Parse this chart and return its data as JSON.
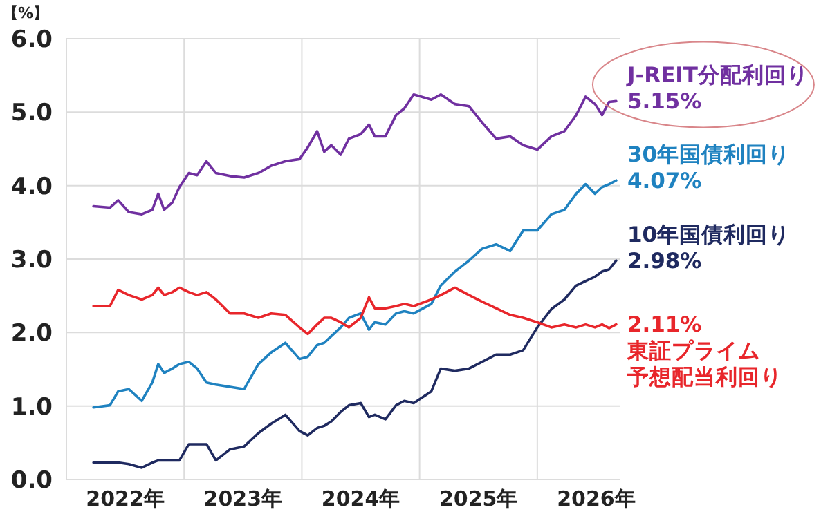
{
  "chart_data": {
    "type": "line",
    "ylabel": "【%】",
    "x": [
      2022.23,
      2022.37,
      2022.44,
      2022.53,
      2022.64,
      2022.73,
      2022.78,
      2022.83,
      2022.9,
      2022.96,
      2023.04,
      2023.11,
      2023.19,
      2023.27,
      2023.39,
      2023.51,
      2023.63,
      2023.74,
      2023.86,
      2023.98,
      2024.05,
      2024.13,
      2024.19,
      2024.25,
      2024.33,
      2024.4,
      2024.5,
      2024.57,
      2024.62,
      2024.71,
      2024.8,
      2024.87,
      2024.95,
      2025.1,
      2025.18,
      2025.3,
      2025.42,
      2025.53,
      2025.65,
      2025.77,
      2025.88,
      2026.0,
      2026.12,
      2026.23,
      2026.33,
      2026.41,
      2026.49,
      2026.55,
      2026.61,
      2026.67
    ],
    "series": [
      {
        "name": "J-REIT分配利回り",
        "color": "#7030a0",
        "values": [
          3.72,
          3.7,
          3.8,
          3.64,
          3.61,
          3.67,
          3.89,
          3.67,
          3.77,
          3.98,
          4.17,
          4.14,
          4.33,
          4.17,
          4.13,
          4.11,
          4.17,
          4.27,
          4.33,
          4.36,
          4.52,
          4.74,
          4.46,
          4.55,
          4.42,
          4.64,
          4.7,
          4.83,
          4.67,
          4.67,
          4.96,
          5.05,
          5.24,
          5.17,
          5.24,
          5.11,
          5.08,
          4.86,
          4.64,
          4.67,
          4.55,
          4.49,
          4.67,
          4.74,
          4.96,
          5.21,
          5.11,
          4.96,
          5.14,
          5.15
        ]
      },
      {
        "name": "30年国債利回り",
        "color": "#1f82c0",
        "values": [
          0.98,
          1.01,
          1.2,
          1.23,
          1.07,
          1.32,
          1.57,
          1.45,
          1.51,
          1.57,
          1.6,
          1.51,
          1.32,
          1.29,
          1.26,
          1.23,
          1.57,
          1.73,
          1.86,
          1.64,
          1.67,
          1.83,
          1.86,
          1.95,
          2.07,
          2.2,
          2.26,
          2.04,
          2.14,
          2.11,
          2.26,
          2.29,
          2.26,
          2.39,
          2.64,
          2.83,
          2.98,
          3.14,
          3.2,
          3.11,
          3.39,
          3.39,
          3.61,
          3.67,
          3.89,
          4.02,
          3.89,
          3.98,
          4.02,
          4.07
        ]
      },
      {
        "name": "10年国債利回り",
        "color": "#1f2a60",
        "values": [
          0.23,
          0.23,
          0.23,
          0.21,
          0.16,
          0.23,
          0.26,
          0.26,
          0.26,
          0.26,
          0.48,
          0.48,
          0.48,
          0.26,
          0.41,
          0.45,
          0.63,
          0.76,
          0.88,
          0.66,
          0.6,
          0.7,
          0.73,
          0.79,
          0.92,
          1.01,
          1.04,
          0.85,
          0.88,
          0.82,
          1.01,
          1.07,
          1.04,
          1.2,
          1.51,
          1.48,
          1.51,
          1.6,
          1.7,
          1.7,
          1.76,
          2.07,
          2.32,
          2.45,
          2.64,
          2.7,
          2.76,
          2.83,
          2.86,
          2.98
        ]
      },
      {
        "name": "東証プライム予想配当利回り",
        "color": "#e8262b",
        "values": [
          2.36,
          2.36,
          2.58,
          2.51,
          2.45,
          2.51,
          2.61,
          2.51,
          2.55,
          2.61,
          2.55,
          2.51,
          2.55,
          2.45,
          2.26,
          2.26,
          2.2,
          2.26,
          2.24,
          2.07,
          1.98,
          2.11,
          2.2,
          2.2,
          2.14,
          2.07,
          2.2,
          2.48,
          2.33,
          2.33,
          2.36,
          2.39,
          2.36,
          2.45,
          2.51,
          2.61,
          2.51,
          2.42,
          2.33,
          2.24,
          2.2,
          2.14,
          2.07,
          2.11,
          2.07,
          2.11,
          2.07,
          2.11,
          2.06,
          2.11
        ]
      }
    ],
    "annotations": [
      "5.15%",
      "4.07%",
      "2.98%",
      "2.11%"
    ],
    "xlim": [
      2022,
      2026.7
    ],
    "xticks": [
      {
        "value": 2022,
        "label": null
      },
      {
        "value": 2022.5,
        "label": "2022年"
      },
      {
        "value": 2023,
        "label": null
      },
      {
        "value": 2023.5,
        "label": "2023年"
      },
      {
        "value": 2024,
        "label": null
      },
      {
        "value": 2024.5,
        "label": "2024年"
      },
      {
        "value": 2025,
        "label": null
      },
      {
        "value": 2025.5,
        "label": "2025年"
      },
      {
        "value": 2026,
        "label": null
      },
      {
        "value": 2026.5,
        "label": "2026年"
      }
    ],
    "ylim": [
      0,
      6
    ],
    "yticks": [
      {
        "value": 0,
        "label": "0.0"
      },
      {
        "value": 1,
        "label": "1.0"
      },
      {
        "value": 2,
        "label": "2.0"
      },
      {
        "value": 3,
        "label": "3.0"
      },
      {
        "value": 4,
        "label": "4.0"
      },
      {
        "value": 5,
        "label": "5.0"
      },
      {
        "value": 6,
        "label": "6.0"
      }
    ],
    "grid": true,
    "legend": false,
    "line_style": "solid",
    "marker": "none"
  }
}
